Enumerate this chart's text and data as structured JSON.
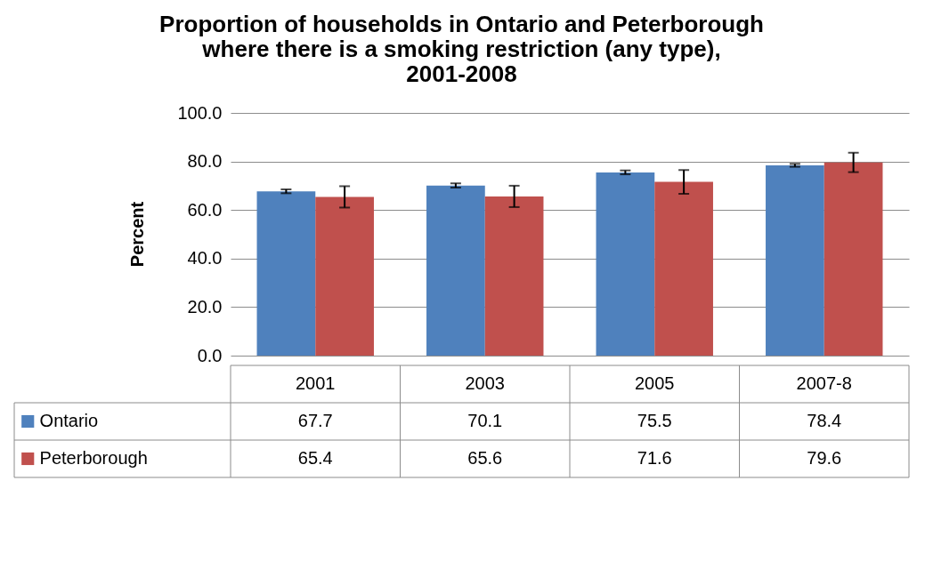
{
  "chart_data": {
    "type": "bar",
    "title": "Proportion of households in Ontario and Peterborough where there is a smoking restriction (any type), 2001-2008",
    "ylabel": "Percent",
    "categories": [
      "2001",
      "2003",
      "2005",
      "2007-8"
    ],
    "series": [
      {
        "name": "Ontario",
        "color": "#4f81bd",
        "values": [
          67.7,
          70.1,
          75.5,
          78.4
        ],
        "errors": [
          0.8,
          0.9,
          0.8,
          0.6
        ]
      },
      {
        "name": "Peterborough",
        "color": "#c0504d",
        "values": [
          65.4,
          65.6,
          71.6,
          79.6
        ],
        "errors": [
          4.4,
          4.4,
          4.9,
          4.0
        ]
      }
    ],
    "ylim": [
      0,
      100
    ],
    "yticks": [
      {
        "value": 0,
        "label": "0.0"
      },
      {
        "value": 20,
        "label": "20.0"
      },
      {
        "value": 40,
        "label": "40.0"
      },
      {
        "value": 60,
        "label": "60.0"
      },
      {
        "value": 80,
        "label": "80.0"
      },
      {
        "value": 100,
        "label": "100.0"
      }
    ],
    "grid": "y",
    "legend": "bottom left",
    "data_labels": true
  }
}
